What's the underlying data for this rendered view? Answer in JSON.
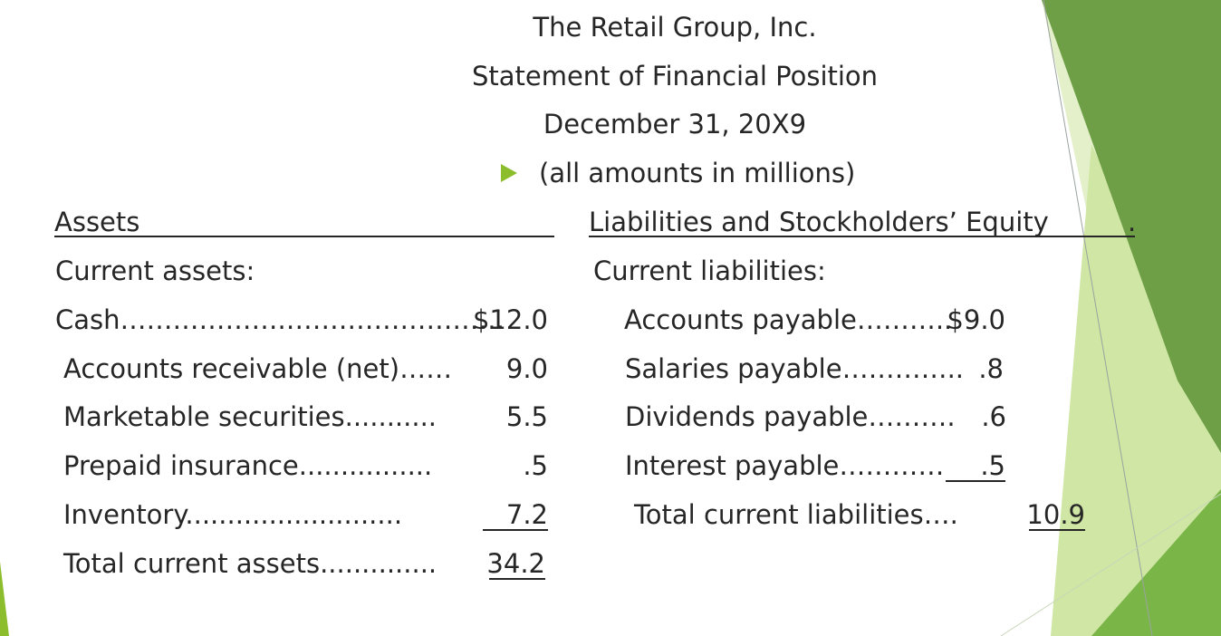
{
  "header": {
    "company": "The Retail Group, Inc.",
    "statement": "Statement of Financial Position",
    "date": "December 31, 20X9",
    "note": "(all amounts in millions)"
  },
  "assets": {
    "heading": "Assets",
    "section": "Current assets:",
    "items": [
      {
        "label": "Cash……………….…………………….",
        "value": "$12.0"
      },
      {
        "label": "Accounts receivable (net)……",
        "value": "9.0"
      },
      {
        "label": "Marketable securities...........",
        "value": "5.5"
      },
      {
        "label": "Prepaid insurance................",
        "value": ".5"
      },
      {
        "label": "Inventory..........................",
        "value": "7.2"
      }
    ],
    "total": {
      "label": "Total current assets..............",
      "value": "34.2"
    }
  },
  "liabilities": {
    "heading": "Liabilities and Stockholders’ Equity",
    "heading_tail": ".",
    "section": "Current liabilities:",
    "items": [
      {
        "label": "Accounts payable………..",
        "value": "$9.0"
      },
      {
        "label": "Salaries payable…………..",
        "value": ".8"
      },
      {
        "label": "Dividends payable……….",
        "value": ".6"
      },
      {
        "label": "Interest payable…………",
        "value": ".5"
      }
    ],
    "total": {
      "label": "Total current liabilities….",
      "value": "10.9"
    }
  },
  "colors": {
    "accent_green": "#8cbd2d",
    "dark_green": "#5f9a38",
    "light_green": "#d6e9b0",
    "text": "#262626"
  },
  "icons": {
    "bullet": "play-triangle-icon"
  }
}
